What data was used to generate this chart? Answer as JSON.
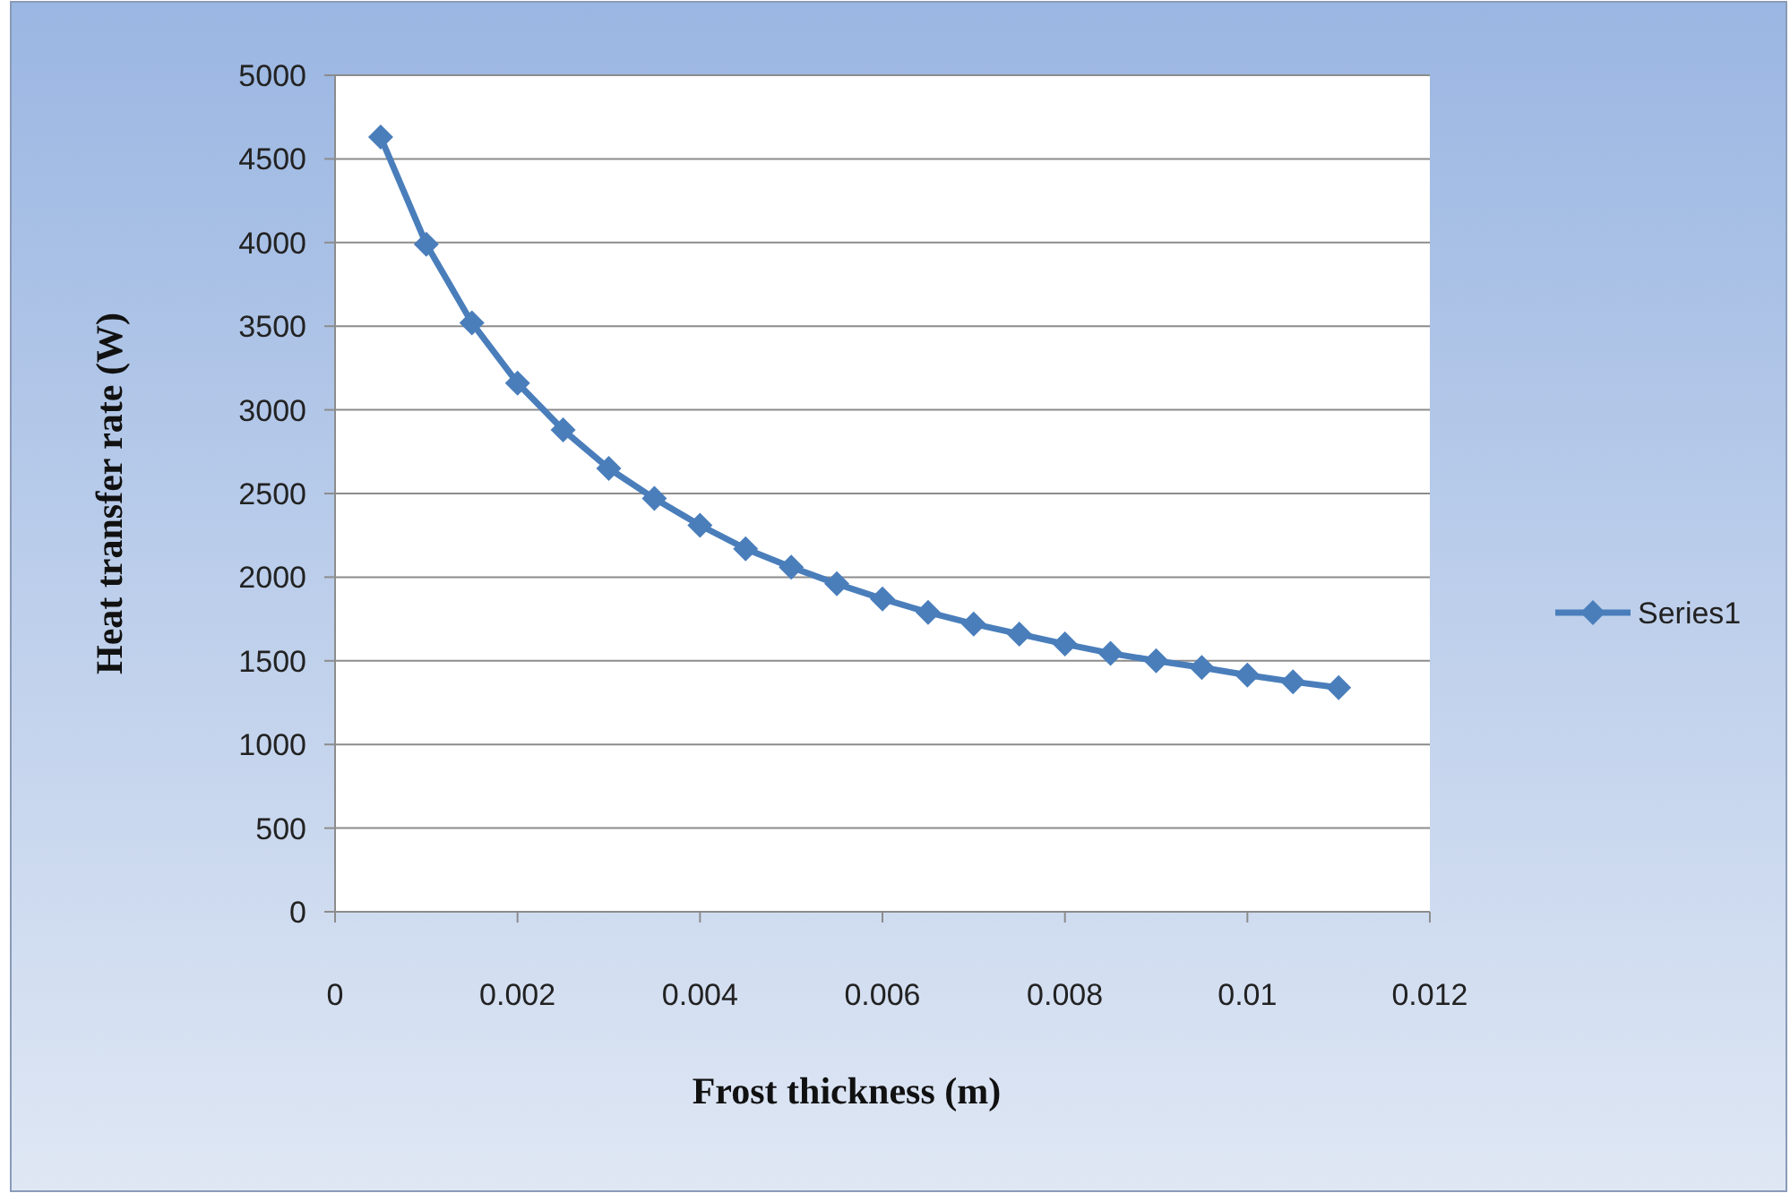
{
  "chart_data": {
    "type": "line",
    "xlabel": "Frost  thickness (m)",
    "ylabel": "Heat  transfer  rate (W)",
    "x": [
      0.0005,
      0.001,
      0.0015,
      0.002,
      0.0025,
      0.003,
      0.0035,
      0.004,
      0.0045,
      0.005,
      0.0055,
      0.006,
      0.0065,
      0.007,
      0.0075,
      0.008,
      0.0085,
      0.009,
      0.0095,
      0.01,
      0.0105,
      0.011
    ],
    "series": [
      {
        "name": "Series1",
        "color": "#4a7ebb",
        "values": [
          4630,
          3990,
          3520,
          3160,
          2880,
          2650,
          2470,
          2310,
          2170,
          2060,
          1960,
          1870,
          1790,
          1720,
          1660,
          1600,
          1545,
          1500,
          1460,
          1415,
          1375,
          1340
        ]
      }
    ],
    "xlim": [
      0,
      0.012
    ],
    "xticks": [
      0,
      0.002,
      0.004,
      0.006,
      0.008,
      0.01,
      0.012
    ],
    "ylim": [
      0,
      5000
    ],
    "yticks": [
      0,
      500,
      1000,
      1500,
      2000,
      2500,
      3000,
      3500,
      4000,
      4500,
      5000
    ],
    "grid": "y",
    "legend": "right",
    "marker": "diamond",
    "line_style": "solid"
  }
}
